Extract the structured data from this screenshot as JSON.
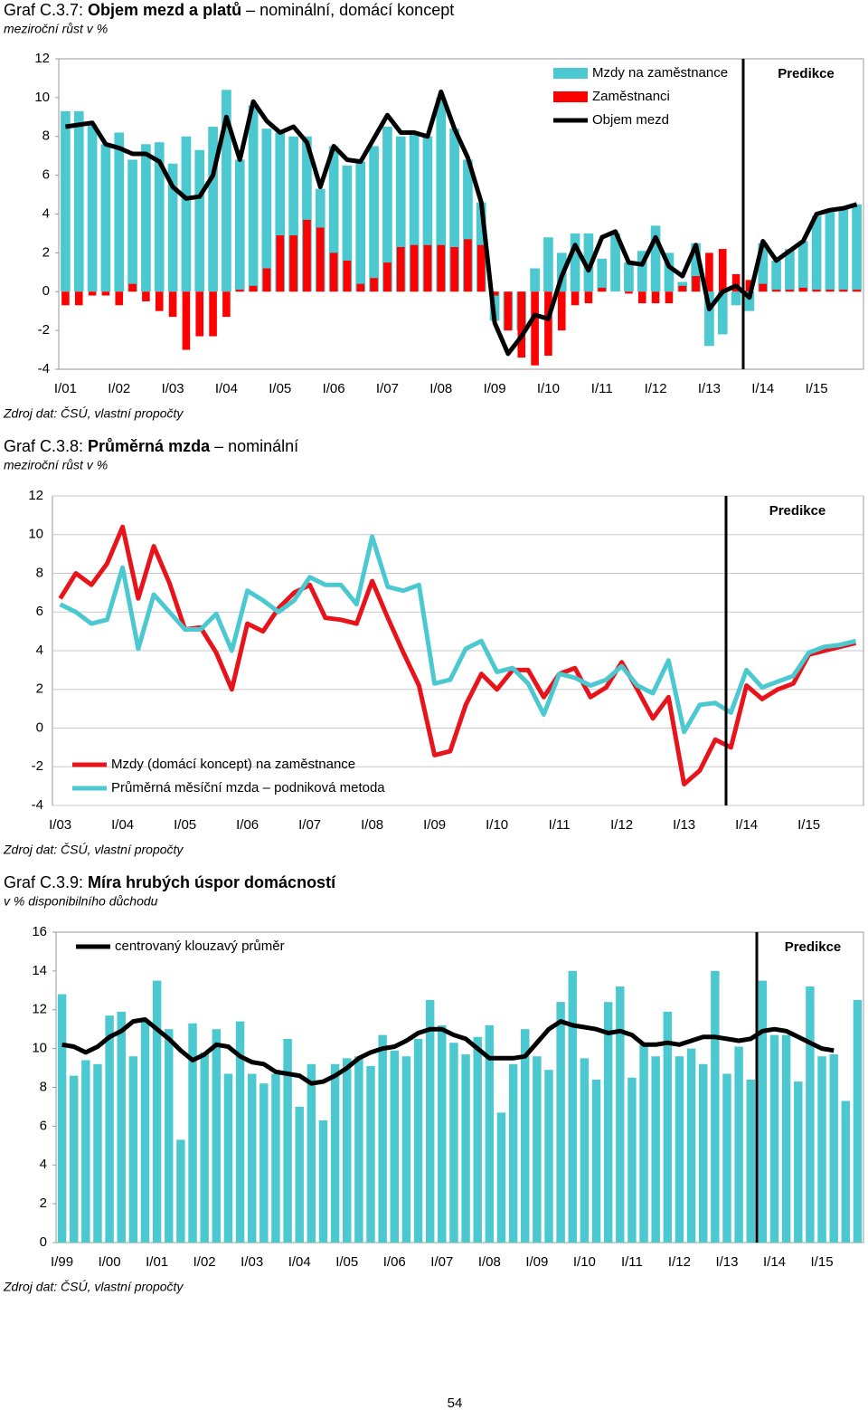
{
  "chart_data": [
    {
      "type": "bar",
      "title_number": "Graf C.3.7:",
      "title": "Objem mezd a platů",
      "title_suffix": "– nominální, domácí koncept",
      "subtitle": "meziroční růst v %",
      "source": "Zdroj dat: ČSÚ, vlastní propočty",
      "annotation": "Predikce",
      "categories": [
        "I/01",
        null,
        null,
        null,
        "I/02",
        null,
        null,
        null,
        "I/03",
        null,
        null,
        null,
        "I/04",
        null,
        null,
        null,
        "I/05",
        null,
        null,
        null,
        "I/06",
        null,
        null,
        null,
        "I/07",
        null,
        null,
        null,
        "I/08",
        null,
        null,
        null,
        "I/09",
        null,
        null,
        null,
        "I/10",
        null,
        null,
        null,
        "I/11",
        null,
        null,
        null,
        "I/12",
        null,
        null,
        null,
        "I/13",
        null,
        null,
        null,
        "I/14",
        null,
        null,
        null,
        "I/15",
        null,
        null,
        null
      ],
      "series": [
        {
          "name": "Mzdy na zaměstnance",
          "color": "#4cc9d0",
          "type": "bar",
          "values": [
            9.3,
            9.3,
            8.6,
            7.6,
            8.2,
            6.8,
            7.6,
            7.7,
            6.6,
            8.0,
            7.3,
            8.5,
            10.4,
            6.8,
            9.6,
            8.4,
            8.2,
            8.0,
            8.0,
            5.3,
            7.5,
            6.5,
            6.7,
            7.5,
            8.5,
            8.0,
            8.1,
            8.0,
            10.0,
            8.4,
            6.8,
            4.6,
            -1.5,
            -2.0,
            -2.0,
            1.2,
            2.8,
            2.0,
            3.0,
            3.0,
            1.7,
            3.0,
            1.5,
            2.1,
            3.4,
            2.0,
            0.5,
            2.5,
            -2.8,
            -2.2,
            -0.7,
            -1.0,
            2.5,
            1.6,
            2.2,
            2.6,
            3.9,
            4.1,
            4.3,
            4.5
          ]
        },
        {
          "name": "Zaměstnanci",
          "color": "#ff0000",
          "type": "bar",
          "values": [
            -0.7,
            -0.7,
            -0.2,
            -0.2,
            -0.7,
            0.4,
            -0.5,
            -1.0,
            -1.3,
            -3.0,
            -2.3,
            -2.3,
            -1.3,
            0.1,
            0.3,
            1.2,
            2.9,
            2.9,
            3.7,
            3.3,
            2.0,
            1.6,
            0.4,
            0.7,
            1.5,
            2.3,
            2.4,
            2.4,
            2.4,
            2.3,
            2.7,
            2.4,
            -0.2,
            -2.0,
            -3.4,
            -3.8,
            -3.3,
            -2.0,
            -0.7,
            -0.6,
            0.2,
            0.0,
            -0.1,
            -0.6,
            -0.6,
            -0.6,
            0.3,
            0.8,
            2.0,
            2.2,
            0.9,
            0.6,
            0.4,
            0.1,
            0.1,
            0.2,
            0.1,
            0.1,
            0.1,
            0.1
          ]
        },
        {
          "name": "Objem mezd",
          "color": "#000000",
          "type": "line",
          "values": [
            8.5,
            8.6,
            8.7,
            7.6,
            7.4,
            7.1,
            7.1,
            6.7,
            5.4,
            4.8,
            4.9,
            6.0,
            9.0,
            6.8,
            9.8,
            8.8,
            8.2,
            8.5,
            7.7,
            5.4,
            7.5,
            6.8,
            6.7,
            7.9,
            9.1,
            8.2,
            8.2,
            8.0,
            10.3,
            8.4,
            6.9,
            4.6,
            -1.6,
            -3.2,
            -2.3,
            -1.2,
            -1.4,
            0.8,
            2.4,
            1.1,
            2.8,
            3.1,
            1.5,
            1.4,
            2.8,
            1.3,
            0.8,
            2.4,
            -0.9,
            0.0,
            0.3,
            -0.3,
            2.6,
            1.6,
            2.1,
            2.6,
            4.0,
            4.2,
            4.3,
            4.5
          ]
        }
      ],
      "ylim": [
        -4,
        12
      ],
      "yticks": [
        -4,
        -2,
        0,
        2,
        4,
        6,
        8,
        10,
        12
      ],
      "grid": false,
      "legend": "upper right"
    },
    {
      "type": "line",
      "title_number": "Graf C.3.8:",
      "title": "Průměrná mzda",
      "title_suffix": "– nominální",
      "subtitle": "meziroční růst v %",
      "source": "Zdroj dat: ČSÚ, vlastní propočty",
      "annotation": "Predikce",
      "categories": [
        "I/03",
        null,
        null,
        null,
        "I/04",
        null,
        null,
        null,
        "I/05",
        null,
        null,
        null,
        "I/06",
        null,
        null,
        null,
        "I/07",
        null,
        null,
        null,
        "I/08",
        null,
        null,
        null,
        "I/09",
        null,
        null,
        null,
        "I/10",
        null,
        null,
        null,
        "I/11",
        null,
        null,
        null,
        "I/12",
        null,
        null,
        null,
        "I/13",
        null,
        null,
        null,
        "I/14",
        null,
        null,
        null,
        "I/15",
        null,
        null,
        null
      ],
      "series": [
        {
          "name": "Mzdy (domácí koncept) na zaměstnance",
          "color": "#e8141c",
          "values": [
            6.7,
            8.0,
            7.4,
            8.5,
            10.4,
            6.7,
            9.4,
            7.5,
            5.1,
            5.2,
            3.9,
            2.0,
            5.4,
            5.0,
            6.2,
            7.0,
            7.4,
            5.7,
            5.6,
            5.4,
            7.6,
            5.7,
            3.9,
            2.2,
            -1.4,
            -1.2,
            1.2,
            2.8,
            2.0,
            3.0,
            3.0,
            1.6,
            2.8,
            3.1,
            1.6,
            2.1,
            3.4,
            2.0,
            0.5,
            1.6,
            -2.9,
            -2.2,
            -0.6,
            -1.0,
            2.2,
            1.5,
            2.0,
            2.3,
            3.8,
            4.0,
            4.2,
            4.4
          ]
        },
        {
          "name": "Průměrná měsíční mzda – podniková metoda",
          "color": "#4cc9d0",
          "values": [
            6.4,
            6.0,
            5.4,
            5.6,
            8.3,
            4.1,
            6.9,
            6.0,
            5.1,
            5.1,
            5.9,
            4.0,
            7.1,
            6.6,
            6.0,
            6.6,
            7.8,
            7.4,
            7.4,
            6.4,
            9.9,
            7.3,
            7.1,
            7.4,
            2.3,
            2.5,
            4.1,
            4.5,
            2.9,
            3.1,
            2.3,
            0.7,
            2.8,
            2.6,
            2.2,
            2.5,
            3.2,
            2.2,
            1.8,
            3.5,
            -0.2,
            1.2,
            1.3,
            0.8,
            3.0,
            2.1,
            2.4,
            2.7,
            3.9,
            4.2,
            4.3,
            4.5
          ]
        }
      ],
      "ylim": [
        -4,
        12
      ],
      "yticks": [
        -4,
        -2,
        0,
        2,
        4,
        6,
        8,
        10,
        12
      ],
      "grid": true,
      "legend": "lower left"
    },
    {
      "type": "bar",
      "title_number": "Graf C.3.9:",
      "title": "Míra hrubých úspor domácností",
      "subtitle": "v % disponibilního důchodu",
      "source": "Zdroj dat: ČSÚ, vlastní propočty",
      "annotation": "Predikce",
      "categories": [
        "I/99",
        null,
        null,
        null,
        "I/00",
        null,
        null,
        null,
        "I/01",
        null,
        null,
        null,
        "I/02",
        null,
        null,
        null,
        "I/03",
        null,
        null,
        null,
        "I/04",
        null,
        null,
        null,
        "I/05",
        null,
        null,
        null,
        "I/06",
        null,
        null,
        null,
        "I/07",
        null,
        null,
        null,
        "I/08",
        null,
        null,
        null,
        "I/09",
        null,
        null,
        null,
        "I/10",
        null,
        null,
        null,
        "I/11",
        null,
        null,
        null,
        "I/12",
        null,
        null,
        null,
        "I/13",
        null,
        null,
        null,
        "I/14",
        null,
        null,
        null,
        "I/15",
        null,
        null,
        null
      ],
      "series": [
        {
          "color": "#4cc9d0",
          "type": "bar",
          "values": [
            12.8,
            8.6,
            9.4,
            9.2,
            11.7,
            11.9,
            9.6,
            11.5,
            13.5,
            11.0,
            5.3,
            11.3,
            9.8,
            11.0,
            8.7,
            11.4,
            8.7,
            8.2,
            8.7,
            10.5,
            7.0,
            9.2,
            6.3,
            9.2,
            9.5,
            9.6,
            9.1,
            10.7,
            9.9,
            9.6,
            10.5,
            12.5,
            11.2,
            10.3,
            9.7,
            10.6,
            11.2,
            6.7,
            9.2,
            11.0,
            9.6,
            8.9,
            12.4,
            14.0,
            9.5,
            8.4,
            12.4,
            13.2,
            8.5,
            10.2,
            9.6,
            11.9,
            9.6,
            10.0,
            9.2,
            14.0,
            8.7,
            10.1,
            8.4,
            13.5,
            10.7,
            10.7,
            8.3,
            13.2,
            9.6,
            9.7,
            7.3,
            12.5
          ]
        },
        {
          "name": "centrovaný klouzavý průměr",
          "color": "#000000",
          "type": "line",
          "values": [
            10.2,
            10.1,
            9.8,
            10.1,
            10.6,
            10.9,
            11.4,
            11.5,
            11.0,
            10.5,
            9.9,
            9.4,
            9.7,
            10.2,
            10.1,
            9.6,
            9.3,
            9.2,
            8.8,
            8.7,
            8.6,
            8.2,
            8.3,
            8.6,
            9.0,
            9.5,
            9.8,
            10.0,
            10.1,
            10.4,
            10.8,
            11.0,
            11.0,
            10.7,
            10.5,
            10.0,
            9.5,
            9.5,
            9.5,
            9.6,
            10.3,
            11.0,
            11.4,
            11.2,
            11.1,
            11.0,
            10.8,
            10.9,
            10.7,
            10.2,
            10.2,
            10.3,
            10.2,
            10.4,
            10.6,
            10.6,
            10.5,
            10.4,
            10.5,
            10.9,
            11.0,
            10.9,
            10.6,
            10.3,
            10.0,
            9.9,
            null,
            null
          ]
        }
      ],
      "ylim": [
        0,
        16
      ],
      "yticks": [
        0,
        2,
        4,
        6,
        8,
        10,
        12,
        14,
        16
      ],
      "grid": false,
      "legend": "upper left"
    }
  ],
  "page_number": "54"
}
